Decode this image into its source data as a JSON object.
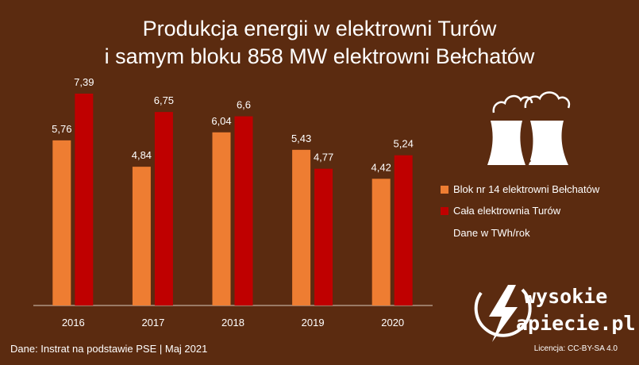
{
  "header": {
    "title_line1": "Produkcja energii w elektrowni Turów",
    "title_line2": "i samym bloku 858 MW elektrowni Bełchatów"
  },
  "legend": {
    "items": [
      {
        "label": "Blok nr 14 elektrowni Bełchatów",
        "color": "#ee7d32"
      },
      {
        "label": "Cała elektrownia Turów",
        "color": "#bf0000"
      }
    ],
    "units_note": "Dane w TWh/rok"
  },
  "footer": {
    "source": "Dane: Instrat na podstawie PSE  |  Maj 2021",
    "license": "Licencja: CC-BY-SA 4.0"
  },
  "brand": {
    "line1": "wysokie",
    "line2": "apiecie.pl",
    "logo_letter": "N"
  },
  "icon": "power-plant-cooling-towers-icon",
  "colors": {
    "background": "#5b2b10",
    "series1": "#ee7d32",
    "series2": "#bf0000",
    "text": "#ffffff"
  },
  "chart_data": {
    "type": "bar",
    "title": "Produkcja energii w elektrowni Turów i samym bloku 858 MW elektrowni Bełchatów",
    "categories": [
      "2016",
      "2017",
      "2018",
      "2019",
      "2020"
    ],
    "series": [
      {
        "name": "Blok nr 14 elektrowni Bełchatów",
        "values": [
          5.76,
          4.84,
          6.04,
          5.43,
          4.42
        ],
        "labels": [
          "5,76",
          "4,84",
          "6,04",
          "5,43",
          "4,42"
        ]
      },
      {
        "name": "Cała elektrownia Turów",
        "values": [
          7.39,
          6.75,
          6.6,
          4.77,
          5.24
        ],
        "labels": [
          "7,39",
          "6,75",
          "6,6",
          "4,77",
          "5,24"
        ]
      }
    ],
    "ylim": [
      0,
      7.39
    ],
    "grid": false,
    "legend": "right",
    "units": "TWh/rok"
  }
}
